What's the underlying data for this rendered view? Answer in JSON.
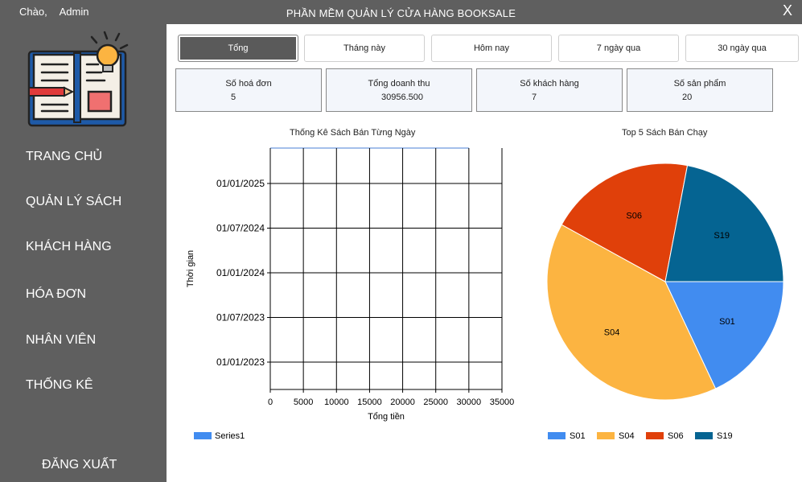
{
  "header": {
    "greeting": "Chào,",
    "user": "Admin",
    "app_title": "PHẦN MỀM QUẢN LÝ CỬA HÀNG BOOKSALE",
    "close_label": "X"
  },
  "sidebar": {
    "items": [
      {
        "label": "TRANG CHỦ"
      },
      {
        "label": "QUẢN LÝ SÁCH"
      },
      {
        "label": "KHÁCH HÀNG"
      },
      {
        "label": "HÓA ĐƠN"
      },
      {
        "label": "NHÂN VIÊN"
      },
      {
        "label": "THỐNG KÊ"
      }
    ],
    "logout": "ĐĂNG XUẤT"
  },
  "tabs": [
    {
      "label": "Tổng",
      "active": true
    },
    {
      "label": "Tháng này"
    },
    {
      "label": "Hôm nay"
    },
    {
      "label": "7 ngày qua"
    },
    {
      "label": "30 ngày qua"
    }
  ],
  "stats": [
    {
      "label": "Số hoá đơn",
      "value": "5"
    },
    {
      "label": "Tổng doanh thu",
      "value": "30956.500"
    },
    {
      "label": "Số khách hàng",
      "value": "7"
    },
    {
      "label": "Số sản phẩm",
      "value": "20"
    }
  ],
  "colors": {
    "sidebar": "#5f5f5f",
    "series1": "#418cf0",
    "S01": "#418cf0",
    "S04": "#fcb441",
    "S06": "#e0400a",
    "S19": "#056492"
  },
  "chart_data": [
    {
      "type": "bar",
      "orientation": "horizontal",
      "title": "Thống Kê Sách Bán Từng Ngày",
      "xlabel": "Tổng tiền",
      "ylabel": "Thời gian",
      "x_ticks": [
        "0",
        "5000",
        "10000",
        "15000",
        "20000",
        "25000",
        "30000",
        "35000"
      ],
      "xlim": [
        0,
        35000
      ],
      "y_ticks": [
        "01/01/2025",
        "01/07/2024",
        "01/01/2024",
        "01/07/2023",
        "01/01/2023"
      ],
      "grid": true,
      "legend": "bottom-left",
      "series": [
        {
          "name": "Series1",
          "values": []
        }
      ]
    },
    {
      "type": "pie",
      "title": "Top 5 Sách Bán Chạy",
      "categories": [
        "S01",
        "S04",
        "S06",
        "S19"
      ],
      "values": [
        18,
        40,
        20,
        22
      ],
      "legend": "bottom"
    }
  ]
}
